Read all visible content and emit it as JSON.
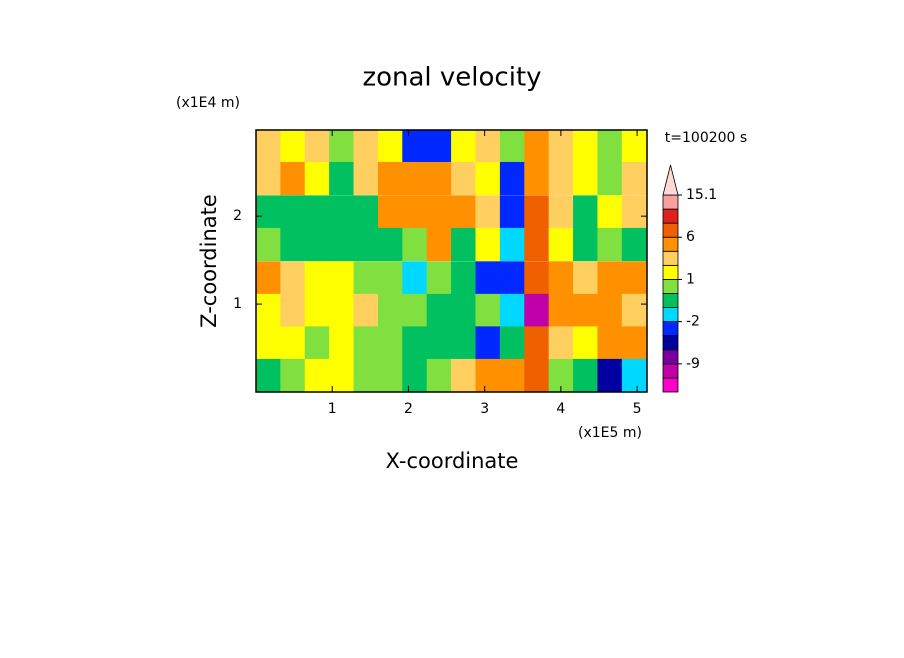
{
  "chart_data": {
    "type": "contour",
    "title": "zonal velocity",
    "xlabel": "X-coordinate",
    "ylabel": "Z-coordinate",
    "x_unit": "(x1E5 m)",
    "y_unit": "(x1E4 m)",
    "annotation": "t=100200 s",
    "xlim": [
      0,
      5.13
    ],
    "ylim": [
      0,
      2.98
    ],
    "xticks": [
      1,
      2,
      3,
      4,
      5
    ],
    "yticks": [
      1,
      2
    ],
    "x": [
      0.16,
      0.48,
      0.8,
      1.12,
      1.44,
      1.76,
      2.08,
      2.4,
      2.72,
      3.04,
      3.36,
      3.68,
      4.0,
      4.32,
      4.64,
      4.96
    ],
    "y": [
      2.8,
      2.43,
      2.05,
      1.68,
      1.3,
      0.93,
      0.56,
      0.19
    ],
    "z": [
      [
        2,
        1,
        2,
        0,
        2,
        1,
        -3,
        -3,
        1,
        2,
        0,
        5,
        2,
        1,
        0,
        1
      ],
      [
        2,
        3,
        1,
        -1,
        2,
        3,
        4,
        3,
        2,
        1,
        -3,
        4,
        2,
        1,
        0,
        2
      ],
      [
        -1,
        -1,
        -1,
        -1,
        -1,
        3,
        5,
        4,
        3,
        2,
        -3,
        6,
        2,
        -1,
        1,
        2
      ],
      [
        0,
        -1,
        -1,
        -1,
        -1,
        -1,
        0,
        3,
        -1,
        1,
        -2,
        7,
        1,
        -1,
        0,
        -1
      ],
      [
        3,
        2,
        1,
        1,
        0,
        0,
        -2,
        0,
        -1,
        -4,
        -3,
        8,
        3,
        2,
        4,
        3
      ],
      [
        1,
        2,
        1,
        1,
        2,
        0,
        0,
        -1,
        -1,
        0,
        -2,
        -10,
        3,
        5,
        4,
        2
      ],
      [
        1,
        1,
        0,
        1,
        0,
        0,
        -1,
        -1,
        -1,
        -4,
        -1,
        8,
        2,
        1,
        3,
        4
      ],
      [
        -1,
        0,
        1,
        1,
        0,
        0,
        -1,
        0,
        2,
        5,
        3,
        6,
        0,
        -1,
        -5,
        -2
      ]
    ],
    "levels": [
      -15,
      -12,
      -9,
      -6,
      -4,
      -2,
      -1,
      0,
      1,
      2,
      3,
      6,
      9,
      12,
      15.1
    ],
    "colors": [
      "#ff00c8",
      "#c000a8",
      "#7800a0",
      "#0000a0",
      "#0028ff",
      "#00d8ff",
      "#00c060",
      "#80e040",
      "#ffff00",
      "#ffd060",
      "#ff9000",
      "#f06000",
      "#e02020",
      "#f8a0a0"
    ],
    "extend_color": "#ffd8d8",
    "cbar_ticks": [
      15.1,
      6,
      1,
      -2,
      -9
    ]
  }
}
